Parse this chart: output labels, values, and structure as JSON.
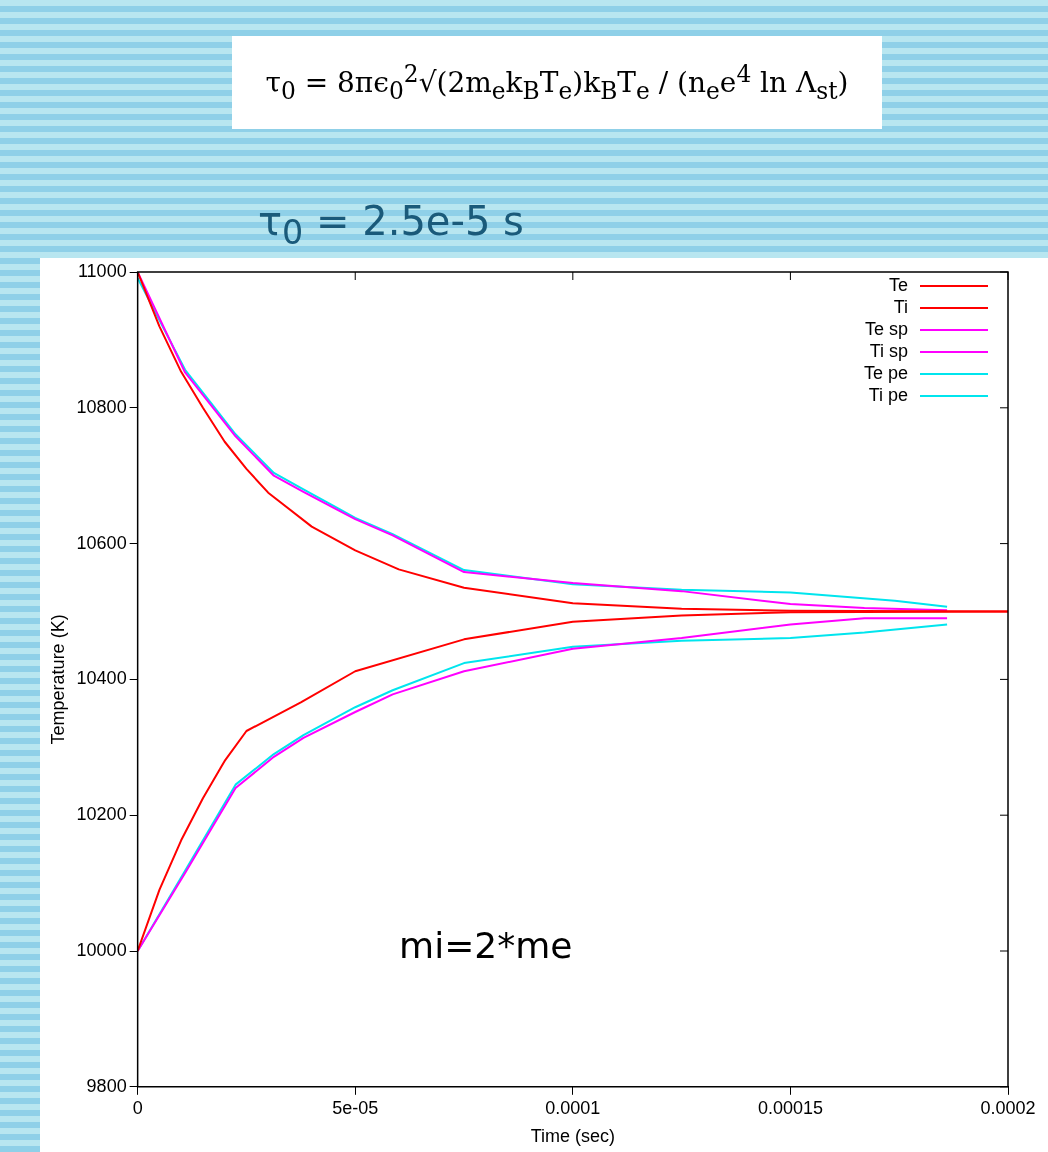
{
  "chart_data": {
    "type": "line",
    "title": "τ$_{0}$ = 8πϵ$_{0}$$^{2}$√(2m$_{e}$k$_{B}$T$_{e}$)k$_{B}$T$_{e}$ / (n$_{e}$e$^{4}$ ln Λ$_{st}$)",
    "subtitle": "τ$_{0}$ = 2.5e-5 s",
    "xlabel": "Time (sec)",
    "ylabel": "Temperature (K)",
    "annotations": [
      "mi=2*me"
    ],
    "series": [
      {
        "name": "Te",
        "color": "#ff0000",
        "x": [
          0,
          5e-06,
          1e-05,
          1.5e-05,
          2e-05,
          2.5e-05,
          3e-05,
          4e-05,
          5e-05,
          6e-05,
          7.5e-05,
          0.0001,
          0.000125,
          0.00015,
          0.0002
        ],
        "values": [
          11000,
          10920,
          10853,
          10800,
          10750,
          10710,
          10675,
          10625,
          10590,
          10562,
          10535,
          10512,
          10504,
          10501,
          10500
        ]
      },
      {
        "name": "Ti",
        "color": "#ff0000",
        "x": [
          0,
          5e-06,
          1e-05,
          1.5e-05,
          2e-05,
          2.5e-05,
          3.75e-05,
          5e-05,
          7.5e-05,
          0.0001,
          0.000125,
          0.00015,
          0.0002
        ],
        "values": [
          10000,
          10090,
          10163,
          10225,
          10280,
          10324,
          10366,
          10412,
          10459,
          10485,
          10494,
          10499,
          10500
        ]
      },
      {
        "name": "Te sp",
        "color": "#ff00ff",
        "x": [
          0,
          1.09e-05,
          2.25e-05,
          3.13e-05,
          3.81e-05,
          5e-05,
          5.86e-05,
          7.5e-05,
          0.0001,
          0.000125,
          0.00015,
          0.000167,
          0.000186
        ],
        "values": [
          11000,
          10852,
          10758,
          10700,
          10676,
          10636,
          10612,
          10558,
          10542,
          10530,
          10511,
          10505,
          10502
        ]
      },
      {
        "name": "Ti sp",
        "color": "#ff00ff",
        "x": [
          0,
          1.09e-05,
          2.25e-05,
          3.13e-05,
          3.81e-05,
          5e-05,
          5.86e-05,
          7.5e-05,
          0.0001,
          0.000125,
          0.00015,
          0.000167,
          0.000186
        ],
        "values": [
          10000,
          10115,
          10240,
          10286,
          10314,
          10352,
          10378,
          10412,
          10445,
          10461,
          10481,
          10490,
          10490
        ]
      },
      {
        "name": "Te pe",
        "color": "#00e5ee",
        "x": [
          0,
          1.09e-05,
          2.25e-05,
          3.13e-05,
          3.81e-05,
          5e-05,
          5.86e-05,
          7.5e-05,
          0.0001,
          0.000125,
          0.00015,
          0.000174,
          0.000186
        ],
        "values": [
          10991,
          10856,
          10761,
          10704,
          10680,
          10638,
          10614,
          10561,
          10540,
          10532,
          10528,
          10516,
          10507
        ]
      },
      {
        "name": "Ti pe",
        "color": "#00e5ee",
        "x": [
          0,
          1.09e-05,
          2.25e-05,
          3.13e-05,
          3.81e-05,
          5e-05,
          5.86e-05,
          7.5e-05,
          0.0001,
          0.000125,
          0.00015,
          0.000167,
          0.000186
        ],
        "values": [
          10000,
          10118,
          10245,
          10290,
          10318,
          10359,
          10384,
          10424,
          10448,
          10457,
          10461,
          10469,
          10481
        ]
      }
    ],
    "xlim": [
      0,
      0.0002
    ],
    "xticks": [
      0,
      {
        "value": 5e-05,
        "label": "5e-05"
      },
      0.0001,
      0.00015,
      0.0002
    ],
    "ylim": [
      9800,
      11000
    ],
    "yticks": [
      9800,
      10000,
      10200,
      10400,
      10600,
      10800,
      11000
    ],
    "legend": "top right",
    "marker": "none",
    "line_style": "solid",
    "grid": false
  }
}
